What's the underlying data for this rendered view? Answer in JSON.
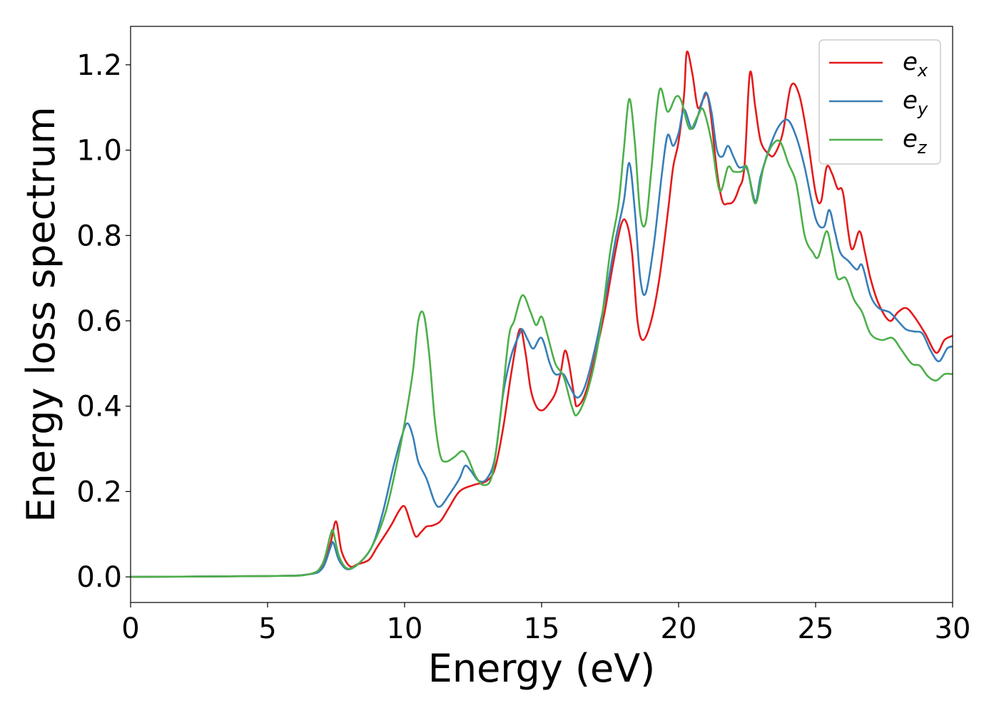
{
  "chart_data": {
    "type": "line",
    "title": "",
    "xlabel": "Energy (eV)",
    "ylabel": "Energy loss spectrum",
    "xlim": [
      0,
      30
    ],
    "ylim": [
      -0.06,
      1.29
    ],
    "xticks": [
      0,
      5,
      10,
      15,
      20,
      25,
      30
    ],
    "yticks": [
      0.0,
      0.2,
      0.4,
      0.6,
      0.8,
      1.0,
      1.2
    ],
    "xtick_labels": [
      "0",
      "5",
      "10",
      "15",
      "20",
      "25",
      "30"
    ],
    "ytick_labels": [
      "0.0",
      "0.2",
      "0.4",
      "0.6",
      "0.8",
      "1.0",
      "1.2"
    ],
    "grid": false,
    "legend_position": "top-right",
    "series": [
      {
        "name": "e_x",
        "legend_base": "e",
        "legend_sub": "x",
        "color": "#e41a1c",
        "points": [
          [
            0,
            0
          ],
          [
            5,
            0.002
          ],
          [
            6.5,
            0.006
          ],
          [
            7.0,
            0.025
          ],
          [
            7.3,
            0.08
          ],
          [
            7.5,
            0.13
          ],
          [
            7.7,
            0.06
          ],
          [
            8.0,
            0.025
          ],
          [
            8.3,
            0.03
          ],
          [
            8.7,
            0.04
          ],
          [
            9.0,
            0.07
          ],
          [
            9.5,
            0.12
          ],
          [
            9.8,
            0.155
          ],
          [
            10.0,
            0.165
          ],
          [
            10.2,
            0.13
          ],
          [
            10.4,
            0.095
          ],
          [
            10.6,
            0.105
          ],
          [
            10.8,
            0.118
          ],
          [
            11.0,
            0.12
          ],
          [
            11.3,
            0.13
          ],
          [
            11.6,
            0.16
          ],
          [
            12.0,
            0.2
          ],
          [
            12.5,
            0.215
          ],
          [
            13.0,
            0.225
          ],
          [
            13.3,
            0.255
          ],
          [
            13.6,
            0.35
          ],
          [
            13.9,
            0.48
          ],
          [
            14.2,
            0.58
          ],
          [
            14.4,
            0.53
          ],
          [
            14.6,
            0.44
          ],
          [
            14.8,
            0.4
          ],
          [
            15.0,
            0.39
          ],
          [
            15.2,
            0.4
          ],
          [
            15.5,
            0.43
          ],
          [
            15.7,
            0.48
          ],
          [
            15.85,
            0.53
          ],
          [
            16.0,
            0.5
          ],
          [
            16.2,
            0.42
          ],
          [
            16.3,
            0.4
          ],
          [
            16.6,
            0.43
          ],
          [
            17.0,
            0.53
          ],
          [
            17.3,
            0.62
          ],
          [
            17.6,
            0.73
          ],
          [
            17.9,
            0.825
          ],
          [
            18.1,
            0.83
          ],
          [
            18.3,
            0.76
          ],
          [
            18.5,
            0.6
          ],
          [
            18.7,
            0.555
          ],
          [
            19.0,
            0.6
          ],
          [
            19.3,
            0.7
          ],
          [
            19.6,
            0.85
          ],
          [
            19.8,
            0.96
          ],
          [
            20.0,
            1.02
          ],
          [
            20.2,
            1.13
          ],
          [
            20.3,
            1.23
          ],
          [
            20.5,
            1.18
          ],
          [
            20.7,
            1.1
          ],
          [
            20.9,
            1.12
          ],
          [
            21.05,
            1.13
          ],
          [
            21.2,
            1.07
          ],
          [
            21.4,
            0.95
          ],
          [
            21.6,
            0.88
          ],
          [
            21.8,
            0.875
          ],
          [
            22.0,
            0.88
          ],
          [
            22.2,
            0.91
          ],
          [
            22.4,
            0.96
          ],
          [
            22.6,
            1.18
          ],
          [
            22.8,
            1.1
          ],
          [
            23.0,
            1.02
          ],
          [
            23.3,
            0.99
          ],
          [
            23.5,
            0.99
          ],
          [
            23.8,
            1.04
          ],
          [
            24.1,
            1.15
          ],
          [
            24.4,
            1.13
          ],
          [
            24.7,
            1.03
          ],
          [
            25.0,
            0.9
          ],
          [
            25.2,
            0.88
          ],
          [
            25.4,
            0.96
          ],
          [
            25.6,
            0.945
          ],
          [
            25.8,
            0.91
          ],
          [
            26.0,
            0.9
          ],
          [
            26.3,
            0.77
          ],
          [
            26.6,
            0.81
          ],
          [
            26.8,
            0.76
          ],
          [
            27.0,
            0.7
          ],
          [
            27.3,
            0.64
          ],
          [
            27.7,
            0.6
          ],
          [
            28.0,
            0.62
          ],
          [
            28.3,
            0.63
          ],
          [
            28.6,
            0.61
          ],
          [
            29.0,
            0.57
          ],
          [
            29.4,
            0.525
          ],
          [
            29.7,
            0.555
          ],
          [
            30.0,
            0.565
          ]
        ]
      },
      {
        "name": "e_y",
        "legend_base": "e",
        "legend_sub": "y",
        "color": "#377eb8",
        "points": [
          [
            0,
            0
          ],
          [
            5,
            0.002
          ],
          [
            6.5,
            0.006
          ],
          [
            7.0,
            0.02
          ],
          [
            7.3,
            0.07
          ],
          [
            7.4,
            0.08
          ],
          [
            7.6,
            0.04
          ],
          [
            7.9,
            0.018
          ],
          [
            8.3,
            0.03
          ],
          [
            8.8,
            0.07
          ],
          [
            9.2,
            0.15
          ],
          [
            9.6,
            0.26
          ],
          [
            9.9,
            0.33
          ],
          [
            10.1,
            0.36
          ],
          [
            10.3,
            0.33
          ],
          [
            10.5,
            0.27
          ],
          [
            10.8,
            0.23
          ],
          [
            11.1,
            0.175
          ],
          [
            11.3,
            0.165
          ],
          [
            11.6,
            0.19
          ],
          [
            12.0,
            0.23
          ],
          [
            12.2,
            0.26
          ],
          [
            12.4,
            0.25
          ],
          [
            12.7,
            0.225
          ],
          [
            13.0,
            0.23
          ],
          [
            13.3,
            0.28
          ],
          [
            13.6,
            0.43
          ],
          [
            13.9,
            0.52
          ],
          [
            14.2,
            0.57
          ],
          [
            14.3,
            0.58
          ],
          [
            14.5,
            0.555
          ],
          [
            14.7,
            0.535
          ],
          [
            15.0,
            0.56
          ],
          [
            15.3,
            0.5
          ],
          [
            15.5,
            0.475
          ],
          [
            15.8,
            0.475
          ],
          [
            16.0,
            0.45
          ],
          [
            16.3,
            0.42
          ],
          [
            16.6,
            0.45
          ],
          [
            17.0,
            0.55
          ],
          [
            17.4,
            0.68
          ],
          [
            17.7,
            0.79
          ],
          [
            18.0,
            0.88
          ],
          [
            18.2,
            0.97
          ],
          [
            18.4,
            0.86
          ],
          [
            18.6,
            0.7
          ],
          [
            18.8,
            0.665
          ],
          [
            19.1,
            0.78
          ],
          [
            19.4,
            0.95
          ],
          [
            19.6,
            1.035
          ],
          [
            19.8,
            1.01
          ],
          [
            20.0,
            1.04
          ],
          [
            20.2,
            1.095
          ],
          [
            20.5,
            1.05
          ],
          [
            20.8,
            1.1
          ],
          [
            21.0,
            1.135
          ],
          [
            21.2,
            1.09
          ],
          [
            21.4,
            1.0
          ],
          [
            21.6,
            0.985
          ],
          [
            21.8,
            1.01
          ],
          [
            22.0,
            0.985
          ],
          [
            22.2,
            0.96
          ],
          [
            22.5,
            0.955
          ],
          [
            22.8,
            0.88
          ],
          [
            23.0,
            0.94
          ],
          [
            23.4,
            1.02
          ],
          [
            23.7,
            1.06
          ],
          [
            24.0,
            1.07
          ],
          [
            24.3,
            1.03
          ],
          [
            24.6,
            0.96
          ],
          [
            25.0,
            0.84
          ],
          [
            25.3,
            0.82
          ],
          [
            25.5,
            0.86
          ],
          [
            25.7,
            0.81
          ],
          [
            25.9,
            0.76
          ],
          [
            26.2,
            0.74
          ],
          [
            26.5,
            0.72
          ],
          [
            26.7,
            0.73
          ],
          [
            27.0,
            0.66
          ],
          [
            27.3,
            0.63
          ],
          [
            27.7,
            0.62
          ],
          [
            28.0,
            0.6
          ],
          [
            28.3,
            0.58
          ],
          [
            28.6,
            0.575
          ],
          [
            28.9,
            0.57
          ],
          [
            29.2,
            0.53
          ],
          [
            29.5,
            0.505
          ],
          [
            29.8,
            0.535
          ],
          [
            30.0,
            0.54
          ]
        ]
      },
      {
        "name": "e_z",
        "legend_base": "e",
        "legend_sub": "z",
        "color": "#4daf4a",
        "points": [
          [
            0,
            0
          ],
          [
            5,
            0.002
          ],
          [
            6.5,
            0.006
          ],
          [
            7.0,
            0.03
          ],
          [
            7.3,
            0.1
          ],
          [
            7.4,
            0.105
          ],
          [
            7.6,
            0.05
          ],
          [
            7.9,
            0.02
          ],
          [
            8.3,
            0.03
          ],
          [
            8.8,
            0.07
          ],
          [
            9.3,
            0.15
          ],
          [
            9.7,
            0.26
          ],
          [
            10.0,
            0.36
          ],
          [
            10.3,
            0.48
          ],
          [
            10.5,
            0.6
          ],
          [
            10.7,
            0.615
          ],
          [
            10.9,
            0.52
          ],
          [
            11.1,
            0.37
          ],
          [
            11.3,
            0.285
          ],
          [
            11.5,
            0.27
          ],
          [
            11.8,
            0.28
          ],
          [
            12.1,
            0.295
          ],
          [
            12.3,
            0.28
          ],
          [
            12.6,
            0.235
          ],
          [
            12.9,
            0.215
          ],
          [
            13.2,
            0.24
          ],
          [
            13.5,
            0.38
          ],
          [
            13.8,
            0.56
          ],
          [
            14.0,
            0.6
          ],
          [
            14.3,
            0.66
          ],
          [
            14.6,
            0.62
          ],
          [
            14.8,
            0.59
          ],
          [
            15.0,
            0.61
          ],
          [
            15.2,
            0.57
          ],
          [
            15.5,
            0.5
          ],
          [
            15.8,
            0.47
          ],
          [
            16.1,
            0.4
          ],
          [
            16.3,
            0.38
          ],
          [
            16.7,
            0.44
          ],
          [
            17.1,
            0.56
          ],
          [
            17.5,
            0.76
          ],
          [
            17.8,
            0.87
          ],
          [
            18.0,
            1.0
          ],
          [
            18.2,
            1.12
          ],
          [
            18.4,
            1.02
          ],
          [
            18.6,
            0.85
          ],
          [
            18.8,
            0.83
          ],
          [
            19.0,
            0.95
          ],
          [
            19.3,
            1.14
          ],
          [
            19.6,
            1.09
          ],
          [
            19.9,
            1.125
          ],
          [
            20.1,
            1.115
          ],
          [
            20.4,
            1.05
          ],
          [
            20.7,
            1.08
          ],
          [
            20.9,
            1.095
          ],
          [
            21.2,
            1.02
          ],
          [
            21.5,
            0.905
          ],
          [
            21.8,
            0.96
          ],
          [
            22.0,
            0.95
          ],
          [
            22.3,
            0.95
          ],
          [
            22.5,
            0.96
          ],
          [
            22.8,
            0.875
          ],
          [
            23.1,
            0.96
          ],
          [
            23.4,
            1.01
          ],
          [
            23.7,
            1.02
          ],
          [
            24.0,
            0.97
          ],
          [
            24.3,
            0.92
          ],
          [
            24.6,
            0.8
          ],
          [
            24.9,
            0.76
          ],
          [
            25.1,
            0.75
          ],
          [
            25.4,
            0.81
          ],
          [
            25.6,
            0.76
          ],
          [
            25.8,
            0.7
          ],
          [
            26.1,
            0.7
          ],
          [
            26.4,
            0.65
          ],
          [
            26.7,
            0.62
          ],
          [
            27.0,
            0.57
          ],
          [
            27.4,
            0.555
          ],
          [
            27.8,
            0.56
          ],
          [
            28.1,
            0.535
          ],
          [
            28.5,
            0.5
          ],
          [
            28.8,
            0.495
          ],
          [
            29.1,
            0.47
          ],
          [
            29.4,
            0.46
          ],
          [
            29.7,
            0.475
          ],
          [
            30.0,
            0.475
          ]
        ]
      }
    ]
  }
}
